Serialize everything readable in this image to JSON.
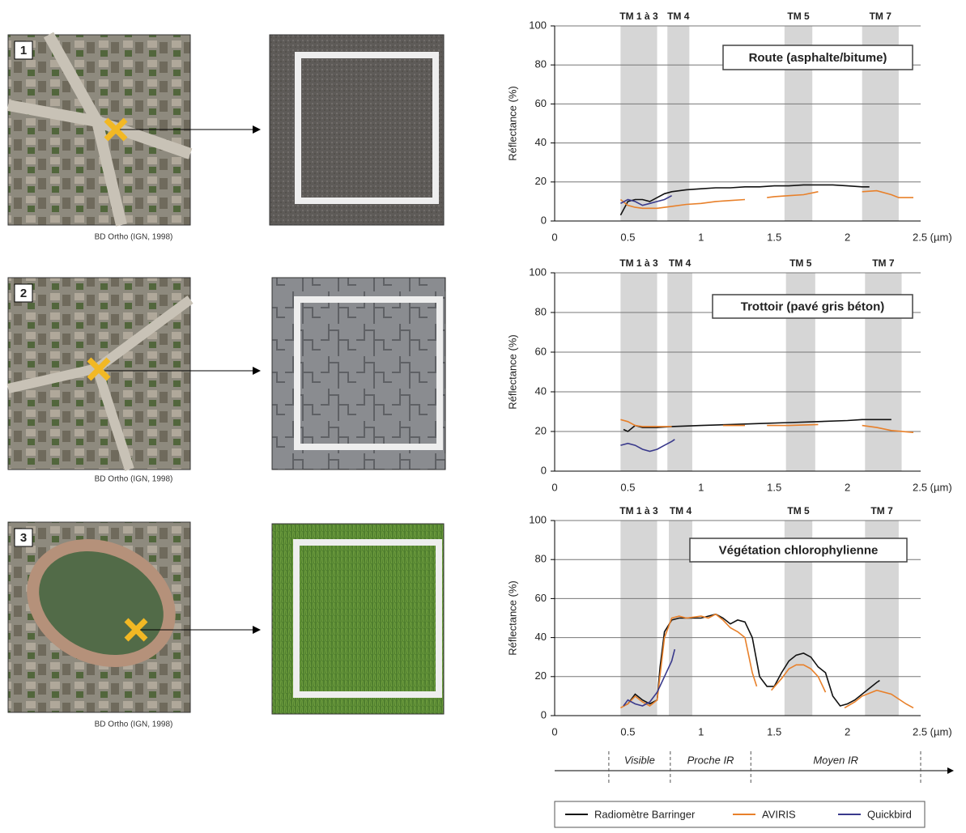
{
  "panels": [
    {
      "number": "1",
      "caption": "BD Ortho (IGN, 1998)"
    },
    {
      "number": "2",
      "caption": "BD Ortho (IGN, 1998)"
    },
    {
      "number": "3",
      "caption": "BD Ortho (IGN, 1998)"
    }
  ],
  "legend": [
    {
      "name": "Radiomètre Barringer",
      "color": "#111111"
    },
    {
      "name": "AVIRIS",
      "color": "#e8802a"
    },
    {
      "name": "Quickbird",
      "color": "#3a3a8c"
    }
  ],
  "chart_data": [
    {
      "type": "line",
      "title": "Route (asphalte/bitume)",
      "ylabel": "Réflectance (%)",
      "xlim": [
        0,
        2.5
      ],
      "ylim": [
        0,
        100
      ],
      "xticks": [
        0,
        0.5,
        1,
        1.5,
        2,
        {
          "value": 2.5,
          "label": "2.5 (µm)"
        }
      ],
      "yticks": [
        0,
        20,
        40,
        60,
        80,
        100
      ],
      "grid": true,
      "bands": [
        {
          "label": "TM 1 à 3",
          "range": [
            0.45,
            0.7
          ]
        },
        {
          "label": "TM 4",
          "range": [
            0.77,
            0.92
          ]
        },
        {
          "label": "TM 5",
          "range": [
            1.57,
            1.76
          ]
        },
        {
          "label": "TM 7",
          "range": [
            2.1,
            2.35
          ]
        }
      ],
      "series": [
        {
          "x": [
            0.45,
            0.5,
            0.55,
            0.6,
            0.65,
            0.7,
            0.75,
            0.8,
            0.9,
            1.0,
            1.1,
            1.2,
            1.3,
            1.4,
            1.5,
            1.6,
            1.7,
            1.8,
            1.9,
            2.0,
            2.1,
            2.15
          ],
          "values": [
            3,
            10,
            11,
            11,
            10,
            12,
            14,
            15,
            16,
            16.5,
            17,
            17,
            17.5,
            17.5,
            18,
            18,
            18.5,
            18.5,
            18.5,
            18,
            17.5,
            17.5
          ]
        },
        {
          "x": [
            0.45,
            0.5,
            0.55,
            0.6,
            0.7,
            0.8,
            0.9,
            1.0,
            1.1,
            1.2,
            1.3,
            1.35,
            1.45,
            1.5,
            1.6,
            1.7,
            1.8,
            1.85,
            2.1,
            2.2,
            2.3,
            2.35,
            2.45
          ],
          "values": [
            11,
            8,
            7,
            6.5,
            6.5,
            7.5,
            8.5,
            9,
            10,
            10.5,
            11,
            null,
            12,
            12.5,
            13,
            13.5,
            15,
            null,
            15,
            15.5,
            13.5,
            12,
            12
          ]
        },
        {
          "x": [
            0.45,
            0.5,
            0.55,
            0.6,
            0.65,
            0.7,
            0.75,
            0.8
          ],
          "values": [
            9,
            11,
            10,
            8,
            9,
            10,
            11,
            13
          ]
        }
      ]
    },
    {
      "type": "line",
      "title": "Trottoir (pavé gris béton)",
      "ylabel": "Réflectance (%)",
      "xlim": [
        0,
        2.5
      ],
      "ylim": [
        0,
        100
      ],
      "xticks": [
        0,
        0.5,
        1,
        1.5,
        2,
        {
          "value": 2.5,
          "label": "2.5 (µm)"
        }
      ],
      "yticks": [
        0,
        20,
        40,
        60,
        80,
        100
      ],
      "grid": true,
      "bands": [
        {
          "label": "TM 1 à 3",
          "range": [
            0.45,
            0.7
          ]
        },
        {
          "label": "TM 4",
          "range": [
            0.77,
            0.94
          ]
        },
        {
          "label": "TM 5",
          "range": [
            1.58,
            1.78
          ]
        },
        {
          "label": "TM 7",
          "range": [
            2.12,
            2.37
          ]
        }
      ],
      "series": [
        {
          "x": [
            0.47,
            0.5,
            0.55,
            0.6,
            0.7,
            0.8,
            1.0,
            1.2,
            1.4,
            1.6,
            1.8,
            2.0,
            2.1,
            2.3
          ],
          "values": [
            21,
            20,
            23,
            22,
            22,
            22.5,
            23,
            23.5,
            24,
            24.5,
            25,
            25.5,
            26,
            26
          ]
        },
        {
          "x": [
            0.45,
            0.5,
            0.55,
            0.6,
            0.8,
            1.0,
            1.15,
            1.3,
            1.35,
            1.45,
            1.6,
            1.8,
            1.9,
            2.1,
            2.2,
            2.3,
            2.45
          ],
          "values": [
            26,
            25,
            23,
            22.5,
            22.5,
            null,
            23,
            23,
            null,
            23,
            23,
            23.5,
            null,
            23,
            22,
            20.5,
            19.5
          ]
        },
        {
          "x": [
            0.45,
            0.5,
            0.55,
            0.6,
            0.65,
            0.7,
            0.75,
            0.8,
            0.82
          ],
          "values": [
            13,
            14,
            13,
            11,
            10,
            11,
            13,
            15,
            16
          ]
        }
      ]
    },
    {
      "type": "line",
      "title": "Végétation chlorophylienne",
      "ylabel": "Réflectance (%)",
      "xlim": [
        0,
        2.5
      ],
      "ylim": [
        0,
        100
      ],
      "xticks": [
        0,
        0.5,
        1,
        1.5,
        2,
        {
          "value": 2.5,
          "label": "2.5 (µm)"
        }
      ],
      "yticks": [
        0,
        20,
        40,
        60,
        80,
        100
      ],
      "grid": true,
      "bands": [
        {
          "label": "TM 1 à 3",
          "range": [
            0.45,
            0.7
          ]
        },
        {
          "label": "TM 4",
          "range": [
            0.78,
            0.94
          ]
        },
        {
          "label": "TM 5",
          "range": [
            1.57,
            1.76
          ]
        },
        {
          "label": "TM 7",
          "range": [
            2.12,
            2.35
          ]
        }
      ],
      "regions": [
        {
          "label": "Visible",
          "range": [
            0.37,
            0.79
          ]
        },
        {
          "label": "Proche IR",
          "range": [
            0.79,
            1.34
          ]
        },
        {
          "label": "Moyen IR",
          "range": [
            1.34,
            2.5
          ]
        }
      ],
      "series": [
        {
          "x": [
            0.47,
            0.5,
            0.55,
            0.6,
            0.65,
            0.7,
            0.72,
            0.75,
            0.8,
            0.85,
            0.9,
            1.0,
            1.1,
            1.15,
            1.2,
            1.25,
            1.3,
            1.35,
            1.4,
            1.45,
            1.5,
            1.55,
            1.6,
            1.65,
            1.7,
            1.75,
            1.8,
            1.85,
            1.9,
            1.95,
            2.0,
            2.05,
            2.1,
            2.15,
            2.2,
            2.22
          ],
          "values": [
            5,
            6,
            11,
            8,
            6,
            8,
            25,
            43,
            49,
            50,
            50,
            50,
            52,
            50,
            47,
            49,
            48,
            40,
            20,
            15,
            15,
            22,
            28,
            31,
            32,
            30,
            25,
            22,
            10,
            5,
            6,
            8,
            11,
            14,
            17,
            18
          ]
        },
        {
          "x": [
            0.45,
            0.5,
            0.55,
            0.6,
            0.65,
            0.7,
            0.75,
            0.8,
            0.85,
            0.9,
            1.0,
            1.05,
            1.1,
            1.15,
            1.2,
            1.25,
            1.3,
            1.35,
            1.38,
            1.43,
            1.48,
            1.55,
            1.6,
            1.65,
            1.7,
            1.75,
            1.8,
            1.85,
            1.9,
            1.98,
            2.05,
            2.1,
            2.2,
            2.3,
            2.4,
            2.45
          ],
          "values": [
            4,
            6,
            10,
            7,
            5,
            8,
            40,
            50,
            51,
            50,
            51,
            50,
            52,
            49,
            45,
            43,
            40,
            22,
            15,
            null,
            13,
            19,
            24,
            26,
            26,
            24,
            20,
            12,
            null,
            4,
            7,
            10,
            13,
            11,
            6,
            4
          ]
        },
        {
          "x": [
            0.47,
            0.5,
            0.55,
            0.6,
            0.65,
            0.7,
            0.75,
            0.8,
            0.82
          ],
          "values": [
            5,
            8,
            6,
            5,
            7,
            12,
            20,
            28,
            34
          ]
        }
      ]
    }
  ]
}
